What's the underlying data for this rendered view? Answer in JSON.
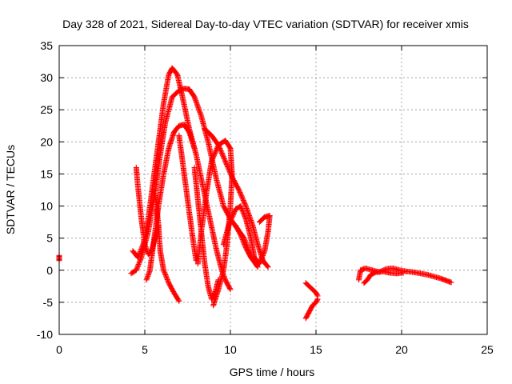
{
  "chart_data": {
    "type": "scatter",
    "title": "Day 328 of 2021, Sidereal Day-to-day VTEC variation (SDTVAR) for receiver xmis",
    "xlabel": "GPS time / hours",
    "ylabel": "SDTVAR / TECUs",
    "xlim": [
      0,
      25
    ],
    "ylim": [
      -10,
      35
    ],
    "xticks": [
      0,
      5,
      10,
      15,
      20,
      25
    ],
    "yticks": [
      -10,
      -5,
      0,
      5,
      10,
      15,
      20,
      25,
      30,
      35
    ],
    "grid": true,
    "marker": "+",
    "color": "#ff0000",
    "series": [
      {
        "name": "t0",
        "points": [
          [
            0,
            1.5
          ],
          [
            0,
            2.3
          ]
        ]
      },
      {
        "name": "arc1",
        "points": [
          [
            4.3,
            3
          ],
          [
            4.6,
            2
          ],
          [
            4.9,
            4
          ],
          [
            5.2,
            8
          ],
          [
            5.5,
            14
          ],
          [
            5.8,
            20
          ],
          [
            6.1,
            26
          ],
          [
            6.4,
            30.5
          ],
          [
            6.6,
            31.5
          ],
          [
            6.9,
            30.5
          ],
          [
            7.2,
            27
          ],
          [
            7.6,
            22
          ],
          [
            8.0,
            18
          ],
          [
            8.4,
            13
          ],
          [
            8.8,
            8
          ],
          [
            9.2,
            3
          ],
          [
            9.5,
            0
          ],
          [
            9.7,
            -1.5
          ],
          [
            10.0,
            -3
          ]
        ]
      },
      {
        "name": "arc2",
        "points": [
          [
            4.2,
            -0.5
          ],
          [
            4.5,
            0
          ],
          [
            4.8,
            2
          ],
          [
            5.2,
            6
          ],
          [
            5.6,
            12
          ],
          [
            5.9,
            18
          ],
          [
            6.2,
            23
          ],
          [
            6.6,
            27
          ],
          [
            7.0,
            28
          ],
          [
            7.3,
            28.3
          ],
          [
            7.6,
            28.2
          ],
          [
            7.9,
            27
          ],
          [
            8.3,
            24
          ],
          [
            8.7,
            20
          ],
          [
            9.2,
            14
          ],
          [
            9.6,
            10
          ],
          [
            10.0,
            8
          ],
          [
            10.4,
            6.5
          ],
          [
            10.8,
            5
          ],
          [
            11.2,
            2
          ],
          [
            11.6,
            0.5
          ]
        ]
      },
      {
        "name": "arc3",
        "points": [
          [
            5.1,
            -1.5
          ],
          [
            5.3,
            0
          ],
          [
            5.5,
            4
          ],
          [
            5.8,
            10
          ],
          [
            6.1,
            15
          ],
          [
            6.4,
            19
          ],
          [
            6.7,
            21.5
          ],
          [
            7.0,
            22.5
          ],
          [
            7.3,
            22.7
          ],
          [
            7.6,
            21.5
          ],
          [
            7.9,
            19
          ]
        ]
      },
      {
        "name": "arc4",
        "points": [
          [
            4.5,
            16
          ],
          [
            4.6,
            13
          ],
          [
            4.8,
            8
          ],
          [
            5.0,
            4
          ],
          [
            5.2,
            2.5
          ],
          [
            5.4,
            3
          ],
          [
            5.6,
            5
          ],
          [
            5.8,
            7
          ]
        ]
      },
      {
        "name": "arc5",
        "points": [
          [
            5.6,
            12
          ],
          [
            5.8,
            7
          ],
          [
            5.9,
            3
          ],
          [
            6.1,
            0
          ],
          [
            6.4,
            -2
          ],
          [
            6.7,
            -3.5
          ],
          [
            7.0,
            -4.8
          ]
        ]
      },
      {
        "name": "arc6",
        "points": [
          [
            7.0,
            21
          ],
          [
            7.2,
            17
          ],
          [
            7.4,
            13
          ],
          [
            7.6,
            9
          ],
          [
            7.8,
            5
          ],
          [
            8.0,
            1.5
          ]
        ]
      },
      {
        "name": "arc7",
        "points": [
          [
            7.9,
            16
          ],
          [
            8.1,
            11
          ],
          [
            8.3,
            6
          ],
          [
            8.5,
            1
          ],
          [
            8.7,
            -2.5
          ],
          [
            8.9,
            -4.5
          ],
          [
            9.1,
            -3.5
          ],
          [
            9.3,
            -1.5
          ]
        ]
      },
      {
        "name": "arc8",
        "points": [
          [
            8.5,
            22
          ],
          [
            8.9,
            21
          ],
          [
            9.3,
            19.5
          ],
          [
            9.7,
            17
          ],
          [
            10.1,
            14.5
          ],
          [
            10.5,
            12.5
          ],
          [
            10.9,
            10
          ],
          [
            11.3,
            7
          ],
          [
            11.6,
            4
          ],
          [
            11.9,
            1.5
          ],
          [
            12.2,
            0.5
          ]
        ]
      },
      {
        "name": "arc9",
        "points": [
          [
            9.0,
            -5.5
          ],
          [
            9.3,
            -3
          ],
          [
            9.6,
            0
          ],
          [
            9.8,
            4
          ],
          [
            10.0,
            10
          ],
          [
            10.1,
            15
          ],
          [
            10.0,
            19
          ],
          [
            9.7,
            20.2
          ],
          [
            9.3,
            19.5
          ],
          [
            8.9,
            17
          ],
          [
            8.6,
            12
          ],
          [
            8.3,
            6
          ],
          [
            8.1,
            1
          ]
        ]
      },
      {
        "name": "arc10",
        "points": [
          [
            9.6,
            4
          ],
          [
            9.9,
            7
          ],
          [
            10.3,
            9.5
          ],
          [
            10.6,
            10
          ],
          [
            10.9,
            8
          ],
          [
            11.2,
            5
          ],
          [
            11.4,
            2
          ],
          [
            11.7,
            1
          ],
          [
            12.0,
            3
          ],
          [
            12.2,
            6
          ],
          [
            12.3,
            8.5
          ],
          [
            12.0,
            8.3
          ],
          [
            11.7,
            7.5
          ]
        ]
      },
      {
        "name": "arc11",
        "points": [
          [
            10.3,
            7
          ],
          [
            10.6,
            5.5
          ],
          [
            10.9,
            3.5
          ],
          [
            11.2,
            2
          ]
        ]
      },
      {
        "name": "arc12",
        "points": [
          [
            14.4,
            -2
          ],
          [
            14.6,
            -2.5
          ],
          [
            14.8,
            -3
          ],
          [
            15.0,
            -3.5
          ],
          [
            15.1,
            -4
          ]
        ]
      },
      {
        "name": "arc13",
        "points": [
          [
            14.4,
            -7.5
          ],
          [
            14.6,
            -6.5
          ],
          [
            14.8,
            -5.5
          ],
          [
            15.0,
            -5
          ],
          [
            15.1,
            -4.5
          ]
        ]
      },
      {
        "name": "arc14",
        "points": [
          [
            17.5,
            -1.5
          ],
          [
            17.6,
            0
          ],
          [
            17.9,
            0.3
          ],
          [
            18.3,
            0
          ],
          [
            18.7,
            -0.3
          ],
          [
            19.1,
            0.2
          ],
          [
            19.5,
            0.3
          ],
          [
            19.9,
            0
          ],
          [
            20.3,
            -0.2
          ],
          [
            20.7,
            -0.3
          ],
          [
            21.1,
            -0.5
          ],
          [
            21.5,
            -0.7
          ],
          [
            21.9,
            -1
          ],
          [
            22.3,
            -1.3
          ],
          [
            22.6,
            -1.6
          ],
          [
            22.9,
            -1.9
          ]
        ]
      },
      {
        "name": "arc15",
        "points": [
          [
            17.8,
            -2
          ],
          [
            18.0,
            -1.5
          ],
          [
            18.2,
            -0.7
          ],
          [
            18.5,
            -0.3
          ],
          [
            18.9,
            -0.2
          ],
          [
            19.3,
            -0.4
          ],
          [
            19.7,
            -0.5
          ],
          [
            20.1,
            -0.4
          ]
        ]
      }
    ]
  }
}
